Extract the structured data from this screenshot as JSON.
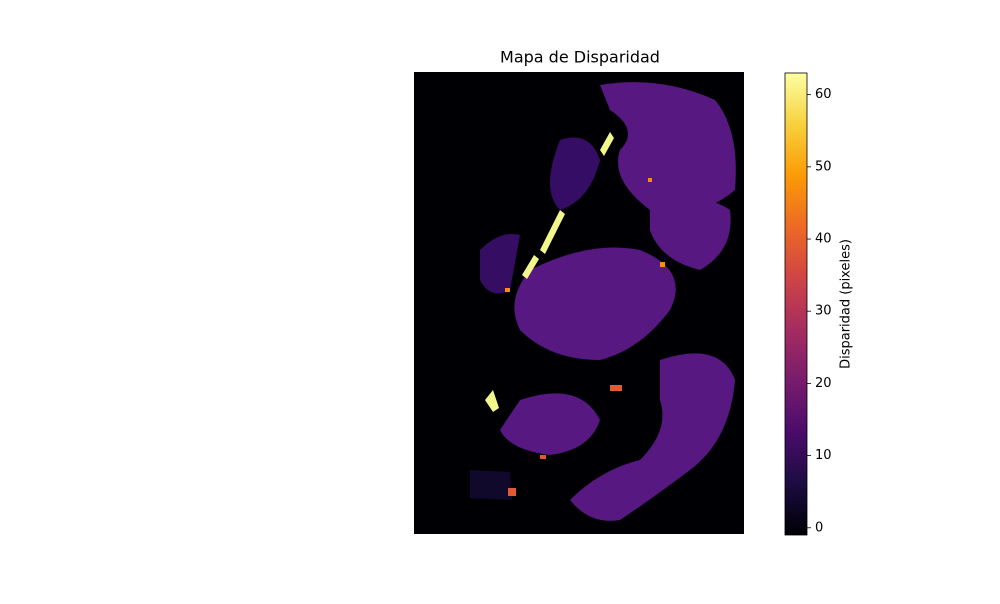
{
  "chart_data": {
    "type": "image",
    "title": "Mapa de Disparidad",
    "colormap": "inferno",
    "colorbar": {
      "label": "Disparidad (pixeles)",
      "lim": [
        -1,
        63
      ],
      "ticks": [
        0,
        10,
        20,
        30,
        40,
        50,
        60
      ]
    }
  }
}
